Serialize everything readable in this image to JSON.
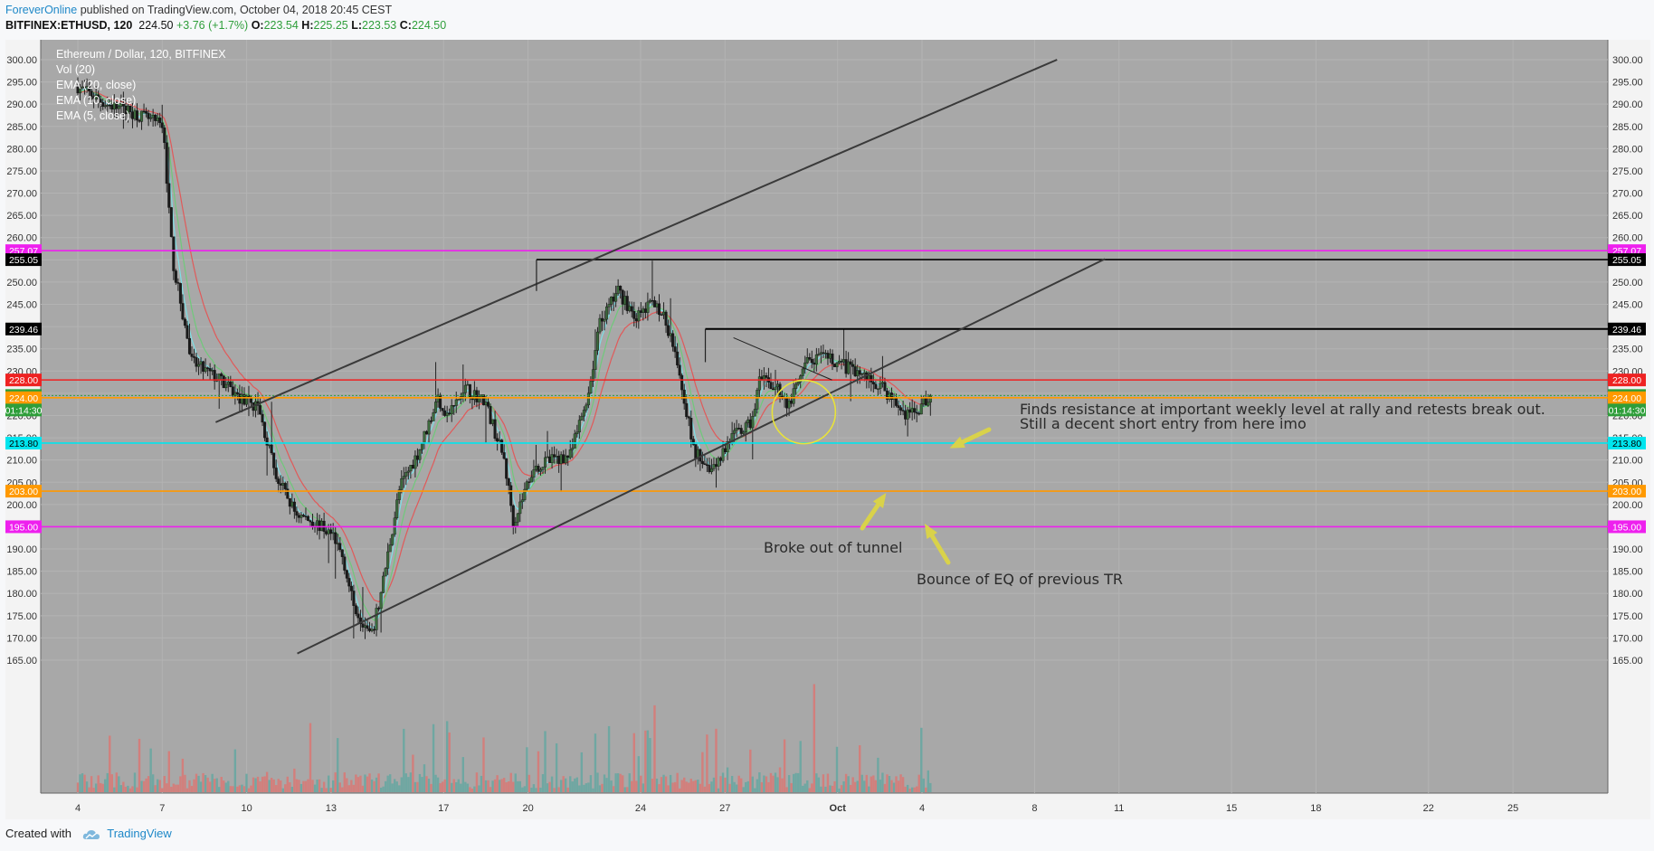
{
  "header": {
    "author": "ForeverOnline",
    "published_text": "published on TradingView.com, October 04, 2018 20:45 CEST",
    "symbol": "BITFINEX:ETHUSD, 120",
    "last": "224.50",
    "change": "+3.76 (+1.7%)",
    "o_label": "O:",
    "o_value": "223.54",
    "h_label": "H:",
    "h_value": "225.25",
    "l_label": "L:",
    "l_value": "223.53",
    "c_label": "C:",
    "c_value": "224.50"
  },
  "legend": {
    "title": "Ethereum / Dollar, 120, BITFINEX",
    "items": [
      "Vol (20)",
      "EMA (20, close)",
      "EMA (10, close)",
      "EMA (5, close)"
    ]
  },
  "footer": {
    "created_with": "Created with",
    "brand": "TradingView"
  },
  "chart_data": {
    "type": "candlestick",
    "y_range": [
      160,
      302
    ],
    "y_ticks": [
      "300.00",
      "295.00",
      "290.00",
      "285.00",
      "280.00",
      "275.00",
      "270.00",
      "265.00",
      "260.00",
      "255.00",
      "250.00",
      "245.00",
      "240.00",
      "235.00",
      "230.00",
      "225.00",
      "220.00",
      "215.00",
      "210.00",
      "205.00",
      "200.00",
      "195.00",
      "190.00",
      "185.00",
      "180.00",
      "175.00",
      "170.00",
      "165.00"
    ],
    "x_ticks": [
      "4",
      "7",
      "10",
      "13",
      "17",
      "20",
      "24",
      "27",
      "Oct",
      "4",
      "8",
      "11",
      "15",
      "18",
      "22",
      "25"
    ],
    "candles_ohlc_path": [
      [
        0,
        294
      ],
      [
        3,
        290
      ],
      [
        6,
        288
      ],
      [
        9,
        285
      ],
      [
        10,
        255
      ],
      [
        12,
        232
      ],
      [
        15,
        228
      ],
      [
        17,
        224
      ],
      [
        19,
        222
      ],
      [
        21,
        206
      ],
      [
        23,
        198
      ],
      [
        25,
        196
      ],
      [
        27,
        193
      ],
      [
        28,
        188
      ],
      [
        29,
        178
      ],
      [
        31,
        170
      ],
      [
        32,
        180
      ],
      [
        34,
        204
      ],
      [
        36,
        212
      ],
      [
        38,
        224
      ],
      [
        39,
        220
      ],
      [
        41,
        226
      ],
      [
        43,
        223
      ],
      [
        45,
        210
      ],
      [
        46,
        196
      ],
      [
        48,
        208
      ],
      [
        50,
        210
      ],
      [
        52,
        211
      ],
      [
        54,
        226
      ],
      [
        55,
        240
      ],
      [
        57,
        248
      ],
      [
        59,
        242
      ],
      [
        61,
        246
      ],
      [
        63,
        236
      ],
      [
        65,
        212
      ],
      [
        67,
        208
      ],
      [
        69,
        215
      ],
      [
        71,
        218
      ],
      [
        72,
        228
      ],
      [
        74,
        226
      ],
      [
        75,
        222
      ],
      [
        77,
        232
      ],
      [
        79,
        233
      ],
      [
        81,
        231
      ],
      [
        83,
        229
      ],
      [
        85,
        226
      ],
      [
        87,
        221
      ],
      [
        88,
        220
      ],
      [
        89,
        222
      ],
      [
        90,
        224.5
      ]
    ],
    "levels": [
      {
        "value": "257.07",
        "color": "#ee20ee"
      },
      {
        "value": "255.05",
        "color": "#000000"
      },
      {
        "value": "239.46",
        "color": "#000000"
      },
      {
        "value": "228.00",
        "color": "#ee2222"
      },
      {
        "value": "224.50",
        "color": "#2e9e3a"
      },
      {
        "value": "224.00",
        "color": "#ff9900"
      },
      {
        "value": "213.80",
        "color": "#00e5ee"
      },
      {
        "value": "203.00",
        "color": "#ff9900"
      },
      {
        "value": "195.00",
        "color": "#ee20ee"
      }
    ],
    "countdown": "01:14:30",
    "annotations": [
      "Finds resistance at important weekly level at rally and retests break out.",
      "Still a decent short entry from here imo",
      "Broke out of tunnel",
      "Bounce of EQ of previous TR"
    ]
  }
}
